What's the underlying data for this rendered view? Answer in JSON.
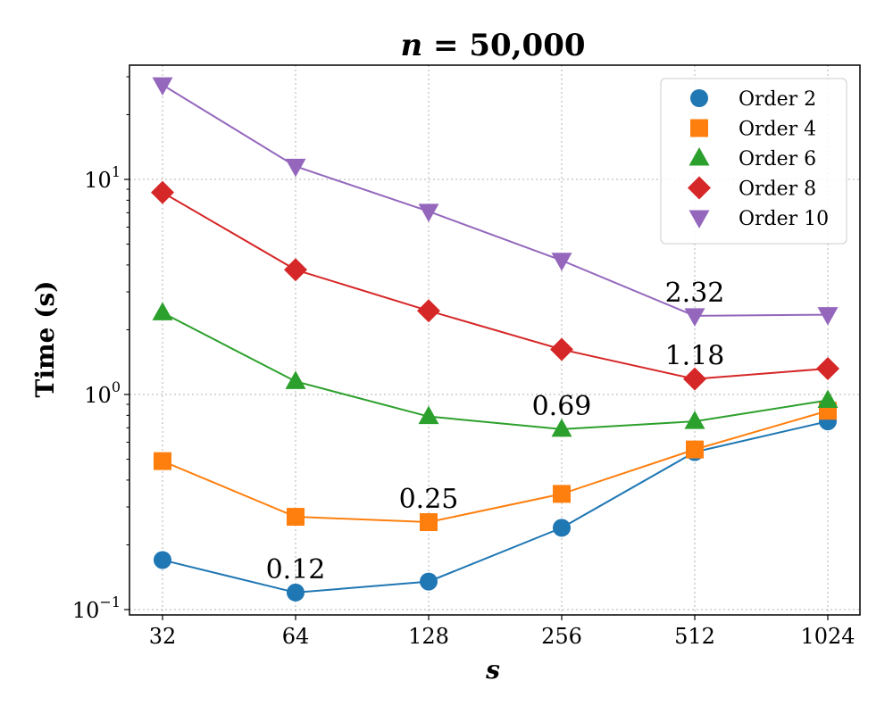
{
  "chart_data": {
    "type": "line",
    "title": "n = 50,000",
    "title_parts": {
      "var": "n",
      "rest": " = 50,000"
    },
    "xlabel": "s",
    "ylabel": "Time (s)",
    "x_scale": "log2",
    "y_scale": "log10",
    "x": [
      32,
      64,
      128,
      256,
      512,
      1024
    ],
    "x_tick_labels": [
      "32",
      "64",
      "128",
      "256",
      "512",
      "1024"
    ],
    "y_ticks": [
      {
        "value": 0.1,
        "base": "10",
        "exp": "−1"
      },
      {
        "value": 1,
        "base": "10",
        "exp": "0"
      },
      {
        "value": 10,
        "base": "10",
        "exp": "1"
      }
    ],
    "ylim": [
      0.09,
      30
    ],
    "grid": true,
    "legend_position": "top-right",
    "series": [
      {
        "name": "Order 2",
        "color": "#1f77b4",
        "marker": "circle",
        "values": [
          0.17,
          0.12,
          0.135,
          0.24,
          0.54,
          0.75
        ]
      },
      {
        "name": "Order 4",
        "color": "#ff7f0e",
        "marker": "square",
        "values": [
          0.49,
          0.27,
          0.255,
          0.345,
          0.555,
          0.84
        ]
      },
      {
        "name": "Order 6",
        "color": "#2ca02c",
        "marker": "triangle-up",
        "values": [
          2.4,
          1.15,
          0.79,
          0.69,
          0.75,
          0.94
        ]
      },
      {
        "name": "Order 8",
        "color": "#d62728",
        "marker": "diamond",
        "values": [
          8.7,
          3.8,
          2.45,
          1.62,
          1.18,
          1.32
        ]
      },
      {
        "name": "Order 10",
        "color": "#9467bd",
        "marker": "triangle-down",
        "values": [
          27.5,
          11.5,
          7.1,
          4.2,
          2.32,
          2.35
        ]
      }
    ],
    "annotations": [
      {
        "text": "0.12",
        "x": 64,
        "y": 0.12
      },
      {
        "text": "0.25",
        "x": 128,
        "y": 0.255
      },
      {
        "text": "0.69",
        "x": 256,
        "y": 0.69
      },
      {
        "text": "1.18",
        "x": 512,
        "y": 1.18
      },
      {
        "text": "2.32",
        "x": 512,
        "y": 2.32
      }
    ]
  }
}
